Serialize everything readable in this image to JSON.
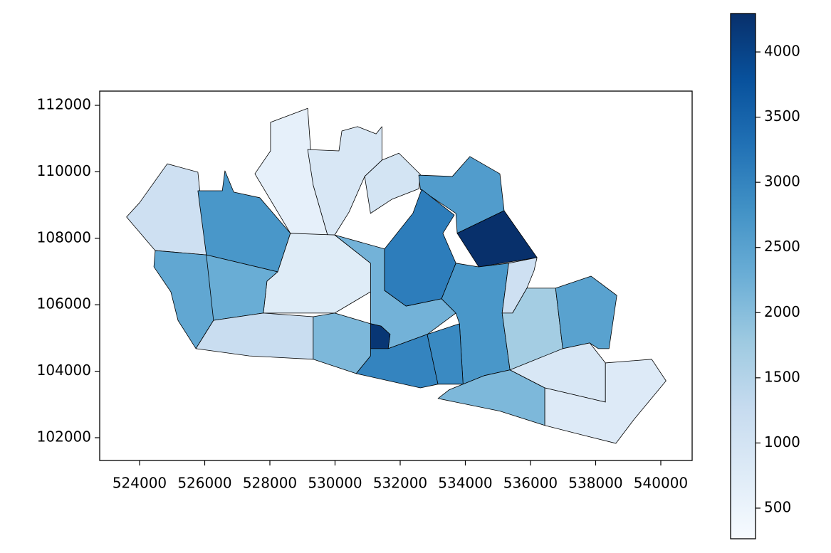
{
  "chart_data": {
    "type": "choropleth",
    "colormap": "Blues",
    "edgecolor": "#000000",
    "xlim": [
      522776,
      540962
    ],
    "ylim": [
      101315,
      112428
    ],
    "xticks": [
      524000,
      526000,
      528000,
      530000,
      532000,
      534000,
      536000,
      538000,
      540000
    ],
    "yticks": [
      102000,
      104000,
      106000,
      108000,
      110000,
      112000
    ],
    "clim": [
      265,
      4295
    ],
    "cticks": [
      500,
      1000,
      1500,
      2000,
      2500,
      3000,
      3500,
      4000
    ],
    "regions": [
      {
        "value": 1100,
        "coords": [
          [
            523600,
            108640
          ],
          [
            524000,
            109070
          ],
          [
            524850,
            110240
          ],
          [
            525790,
            109990
          ],
          [
            526050,
            107500
          ],
          [
            524480,
            107630
          ]
        ]
      },
      {
        "value": 2700,
        "coords": [
          [
            525790,
            109430
          ],
          [
            526540,
            109430
          ],
          [
            526620,
            110030
          ],
          [
            526890,
            109390
          ],
          [
            527690,
            109220
          ],
          [
            528630,
            108150
          ],
          [
            528240,
            106990
          ],
          [
            526050,
            107500
          ]
        ]
      },
      {
        "value": 600,
        "coords": [
          [
            528020,
            111490
          ],
          [
            529160,
            111910
          ],
          [
            529330,
            109600
          ],
          [
            529770,
            108100
          ],
          [
            529380,
            107890
          ],
          [
            528630,
            108150
          ],
          [
            527540,
            109940
          ],
          [
            528020,
            110630
          ]
        ]
      },
      {
        "value": 900,
        "coords": [
          [
            529160,
            110670
          ],
          [
            530120,
            110630
          ],
          [
            530210,
            111230
          ],
          [
            530690,
            111360
          ],
          [
            531260,
            111140
          ],
          [
            531440,
            111360
          ],
          [
            531440,
            110350
          ],
          [
            530910,
            109860
          ],
          [
            530430,
            108790
          ],
          [
            529990,
            108100
          ],
          [
            529770,
            108100
          ],
          [
            529330,
            109600
          ]
        ]
      },
      {
        "value": 1000,
        "coords": [
          [
            531440,
            110350
          ],
          [
            531960,
            110560
          ],
          [
            532620,
            109920
          ],
          [
            532570,
            109490
          ],
          [
            531740,
            109170
          ],
          [
            531090,
            108750
          ],
          [
            530910,
            109860
          ]
        ]
      },
      {
        "value": 2600,
        "coords": [
          [
            532570,
            109900
          ],
          [
            533600,
            109860
          ],
          [
            534140,
            110460
          ],
          [
            535060,
            109940
          ],
          [
            535190,
            108830
          ],
          [
            533750,
            108150
          ],
          [
            533710,
            108750
          ],
          [
            532620,
            109470
          ]
        ]
      },
      {
        "value": 4300,
        "coords": [
          [
            533750,
            108150
          ],
          [
            535190,
            108830
          ],
          [
            536200,
            107420
          ],
          [
            534410,
            107140
          ]
        ]
      },
      {
        "value": 750,
        "coords": [
          [
            528240,
            106990
          ],
          [
            528630,
            108150
          ],
          [
            529990,
            108100
          ],
          [
            531090,
            107250
          ],
          [
            531090,
            106390
          ],
          [
            529990,
            105750
          ],
          [
            527800,
            105750
          ],
          [
            527910,
            106710
          ]
        ]
      },
      {
        "value": 2300,
        "coords": [
          [
            526050,
            107500
          ],
          [
            528240,
            106990
          ],
          [
            527910,
            106710
          ],
          [
            527800,
            105750
          ],
          [
            526270,
            105530
          ],
          [
            526050,
            105750
          ]
        ]
      },
      {
        "value": 2400,
        "coords": [
          [
            524480,
            107630
          ],
          [
            526050,
            107500
          ],
          [
            526270,
            105530
          ],
          [
            526050,
            105190
          ],
          [
            525730,
            104680
          ],
          [
            525180,
            105530
          ],
          [
            524960,
            106390
          ],
          [
            524440,
            107140
          ]
        ]
      },
      {
        "value": 1200,
        "coords": [
          [
            525730,
            104680
          ],
          [
            526270,
            105530
          ],
          [
            527800,
            105750
          ],
          [
            529330,
            105640
          ],
          [
            529330,
            104360
          ],
          [
            527370,
            104460
          ]
        ]
      },
      {
        "value": 2100,
        "coords": [
          [
            529330,
            105640
          ],
          [
            529990,
            105750
          ],
          [
            531090,
            105430
          ],
          [
            531090,
            104460
          ],
          [
            530650,
            103930
          ],
          [
            529330,
            104360
          ]
        ]
      },
      {
        "value": 2200,
        "coords": [
          [
            529990,
            108100
          ],
          [
            531520,
            107680
          ],
          [
            531520,
            106430
          ],
          [
            532180,
            105960
          ],
          [
            533270,
            106180
          ],
          [
            533710,
            105750
          ],
          [
            532830,
            105110
          ],
          [
            531630,
            104680
          ],
          [
            531690,
            105110
          ],
          [
            531410,
            105360
          ],
          [
            531090,
            105430
          ],
          [
            531090,
            107250
          ]
        ]
      },
      {
        "value": 3100,
        "coords": [
          [
            532660,
            109470
          ],
          [
            533660,
            108700
          ],
          [
            533310,
            108150
          ],
          [
            533710,
            107250
          ],
          [
            533270,
            106180
          ],
          [
            532180,
            105960
          ],
          [
            531520,
            106430
          ],
          [
            531520,
            107680
          ],
          [
            532390,
            108750
          ]
        ]
      },
      {
        "value": 4200,
        "coords": [
          [
            531090,
            105430
          ],
          [
            531410,
            105360
          ],
          [
            531690,
            105110
          ],
          [
            531630,
            104680
          ],
          [
            531090,
            104680
          ]
        ]
      },
      {
        "value": 3000,
        "coords": [
          [
            530650,
            103930
          ],
          [
            531090,
            104460
          ],
          [
            531090,
            104680
          ],
          [
            531630,
            104680
          ],
          [
            532830,
            105110
          ],
          [
            533160,
            103610
          ],
          [
            532620,
            103500
          ]
        ]
      },
      {
        "value": 2700,
        "coords": [
          [
            533710,
            107250
          ],
          [
            534410,
            107140
          ],
          [
            535330,
            107250
          ],
          [
            535130,
            105750
          ],
          [
            535370,
            104040
          ],
          [
            534590,
            103870
          ],
          [
            533930,
            103610
          ],
          [
            533820,
            105430
          ],
          [
            533710,
            105750
          ],
          [
            533270,
            106180
          ]
        ]
      },
      {
        "value": 2900,
        "coords": [
          [
            533160,
            103610
          ],
          [
            532830,
            105110
          ],
          [
            533820,
            105430
          ],
          [
            533930,
            103610
          ]
        ]
      },
      {
        "value": 1100,
        "coords": [
          [
            535330,
            107250
          ],
          [
            536200,
            107420
          ],
          [
            536110,
            107030
          ],
          [
            535890,
            106500
          ],
          [
            535450,
            105750
          ],
          [
            535130,
            105750
          ]
        ]
      },
      {
        "value": 1700,
        "coords": [
          [
            535450,
            105750
          ],
          [
            535890,
            106500
          ],
          [
            536770,
            106500
          ],
          [
            536990,
            104680
          ],
          [
            535890,
            104040
          ],
          [
            535370,
            104040
          ],
          [
            535130,
            105750
          ]
        ]
      },
      {
        "value": 2500,
        "coords": [
          [
            536770,
            106500
          ],
          [
            537860,
            106860
          ],
          [
            538650,
            106280
          ],
          [
            538410,
            104680
          ],
          [
            538080,
            104680
          ],
          [
            537820,
            104850
          ],
          [
            536990,
            104680
          ]
        ]
      },
      {
        "value": 2100,
        "coords": [
          [
            533500,
            103440
          ],
          [
            534590,
            103870
          ],
          [
            535370,
            104040
          ],
          [
            536440,
            103500
          ],
          [
            536440,
            102370
          ],
          [
            535060,
            102800
          ],
          [
            533160,
            103180
          ]
        ]
      },
      {
        "value": 900,
        "coords": [
          [
            535370,
            104040
          ],
          [
            536990,
            104680
          ],
          [
            537820,
            104850
          ],
          [
            538300,
            104250
          ],
          [
            538300,
            103070
          ],
          [
            536440,
            103500
          ]
        ]
      },
      {
        "value": 800,
        "coords": [
          [
            538300,
            104250
          ],
          [
            539720,
            104360
          ],
          [
            540160,
            103710
          ],
          [
            539170,
            102540
          ],
          [
            538620,
            101830
          ],
          [
            537640,
            102070
          ],
          [
            536440,
            102370
          ],
          [
            536440,
            103500
          ],
          [
            538300,
            103070
          ]
        ]
      }
    ]
  }
}
